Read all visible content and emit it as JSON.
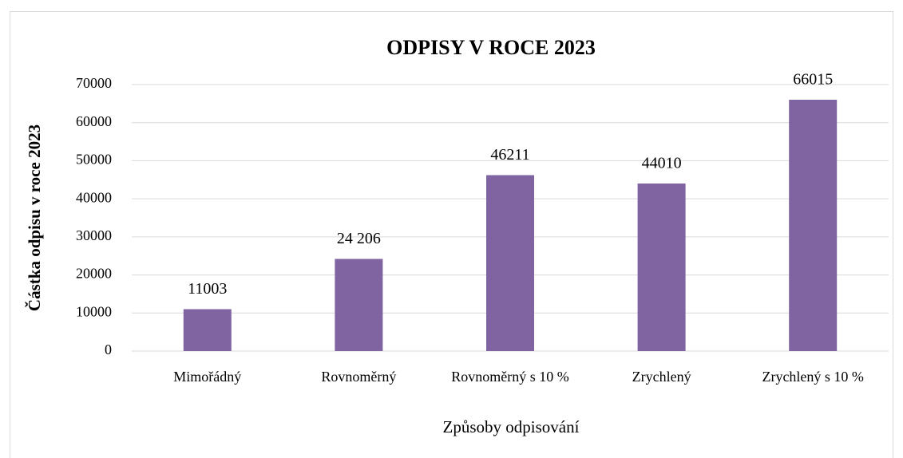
{
  "chart_data": {
    "type": "bar",
    "title": "ODPISY V ROCE 2023",
    "x_label": "Způsoby odpisování",
    "y_label": "Částka odpisu  v roce 2023",
    "categories": [
      "Mimořádný",
      "Rovnoměrný",
      "Rovnoměrný s 10 %",
      "Zrychlený",
      "Zrychlený s 10 %"
    ],
    "values": [
      11003,
      24206,
      46211,
      44010,
      66015
    ],
    "value_labels": [
      "11003",
      "24 206",
      "46211",
      "44010",
      "66015"
    ],
    "color": "#8064a2",
    "ylim": [
      0,
      70000
    ],
    "yticks": [
      0,
      10000,
      20000,
      30000,
      40000,
      50000,
      60000,
      70000
    ],
    "grid": true
  }
}
